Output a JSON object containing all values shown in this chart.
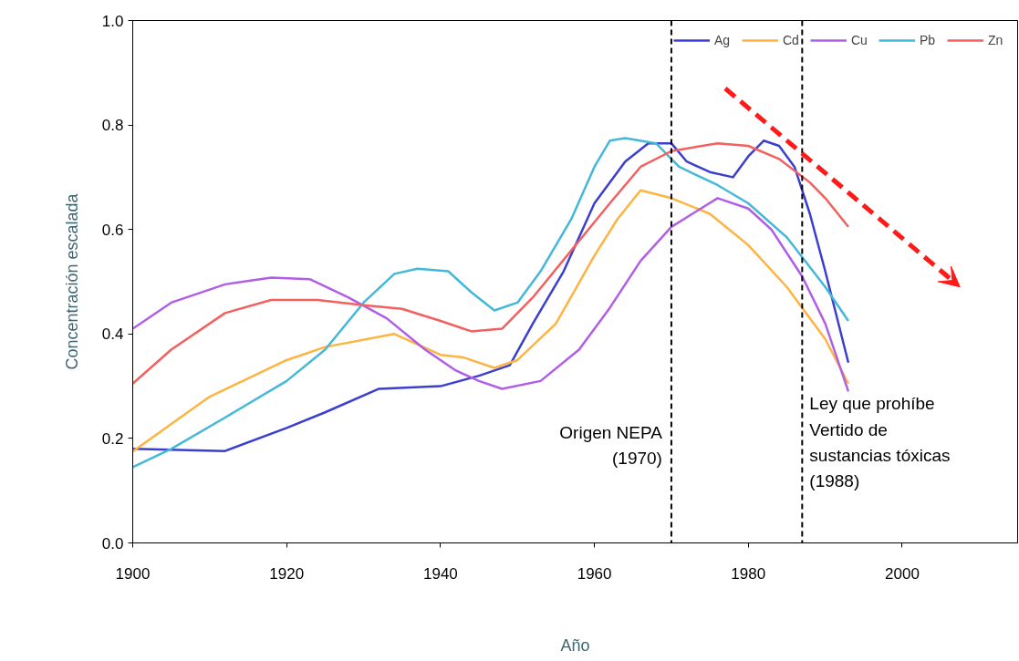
{
  "chart_data": {
    "type": "line",
    "xlabel": "Año",
    "ylabel": "Concentración escalada",
    "xlim": [
      1900,
      2015
    ],
    "ylim": [
      0,
      1.0
    ],
    "xticks": [
      1900,
      1920,
      1940,
      1960,
      1980,
      2000
    ],
    "yticks": [
      {
        "value": 0,
        "label": "0.0"
      },
      {
        "value": 0.2,
        "label": "0.2"
      },
      {
        "value": 0.4,
        "label": "0.4"
      },
      {
        "value": 0.6,
        "label": "0.6"
      },
      {
        "value": 0.8,
        "label": "0.8"
      },
      {
        "value": 1.0,
        "label": "1.0"
      }
    ],
    "grid": false,
    "legend": "top right",
    "line_style": "solid",
    "marker": "none",
    "series": [
      {
        "name": "Ag",
        "color": "#3b3fd0",
        "x": [
          1900,
          1912,
          1920,
          1925,
          1932,
          1940,
          1945,
          1949,
          1952,
          1956,
          1960,
          1964,
          1967,
          1970,
          1972,
          1975,
          1978,
          1980,
          1982,
          1984,
          1986,
          1988,
          1990,
          1993
        ],
        "values": [
          0.18,
          0.176,
          0.22,
          0.25,
          0.295,
          0.3,
          0.32,
          0.34,
          0.42,
          0.52,
          0.65,
          0.73,
          0.765,
          0.765,
          0.73,
          0.71,
          0.7,
          0.74,
          0.77,
          0.76,
          0.72,
          0.63,
          0.52,
          0.345
        ]
      },
      {
        "name": "Cd",
        "color": "#ffb340",
        "x": [
          1900,
          1910,
          1920,
          1925,
          1934,
          1940,
          1943,
          1947,
          1950,
          1955,
          1960,
          1963,
          1966,
          1970,
          1975,
          1980,
          1985,
          1990,
          1993
        ],
        "values": [
          0.175,
          0.28,
          0.35,
          0.375,
          0.4,
          0.36,
          0.355,
          0.335,
          0.35,
          0.42,
          0.55,
          0.62,
          0.675,
          0.66,
          0.63,
          0.57,
          0.49,
          0.39,
          0.305
        ]
      },
      {
        "name": "Cu",
        "color": "#b05ee8",
        "x": [
          1900,
          1905,
          1912,
          1918,
          1923,
          1928,
          1933,
          1938,
          1942,
          1945,
          1948,
          1953,
          1958,
          1962,
          1966,
          1970,
          1976,
          1980,
          1983,
          1987,
          1990,
          1993
        ],
        "values": [
          0.41,
          0.46,
          0.495,
          0.508,
          0.505,
          0.47,
          0.43,
          0.37,
          0.33,
          0.31,
          0.295,
          0.31,
          0.37,
          0.45,
          0.54,
          0.605,
          0.66,
          0.64,
          0.6,
          0.51,
          0.42,
          0.29
        ]
      },
      {
        "name": "Pb",
        "color": "#44b8d8",
        "x": [
          1900,
          1905,
          1912,
          1920,
          1925,
          1930,
          1934,
          1937,
          1941,
          1944,
          1947,
          1950,
          1953,
          1957,
          1960,
          1962,
          1964,
          1968,
          1971,
          1976,
          1980,
          1985,
          1990,
          1993
        ],
        "values": [
          0.145,
          0.18,
          0.24,
          0.31,
          0.37,
          0.46,
          0.515,
          0.525,
          0.52,
          0.48,
          0.445,
          0.46,
          0.52,
          0.62,
          0.72,
          0.77,
          0.775,
          0.765,
          0.72,
          0.685,
          0.65,
          0.585,
          0.49,
          0.425
        ]
      },
      {
        "name": "Zn",
        "color": "#f26060",
        "x": [
          1900,
          1905,
          1912,
          1918,
          1924,
          1930,
          1935,
          1940,
          1944,
          1948,
          1952,
          1957,
          1962,
          1966,
          1970,
          1976,
          1980,
          1984,
          1988,
          1990,
          1993
        ],
        "values": [
          0.305,
          0.37,
          0.44,
          0.465,
          0.465,
          0.455,
          0.448,
          0.425,
          0.405,
          0.41,
          0.47,
          0.56,
          0.65,
          0.72,
          0.75,
          0.765,
          0.76,
          0.735,
          0.69,
          0.66,
          0.605
        ]
      }
    ],
    "ref_lines": [
      {
        "axis": "x",
        "value": 1970,
        "label": "Origen NEPA\n(1970)",
        "color": "#000000",
        "line_style": "dashed"
      },
      {
        "axis": "x",
        "value": 1987,
        "label": "Ley que prohíbe\nVertido de\nsustancias tóxicas\n(1988)",
        "color": "#000000",
        "line_style": "dashed"
      }
    ]
  }
}
